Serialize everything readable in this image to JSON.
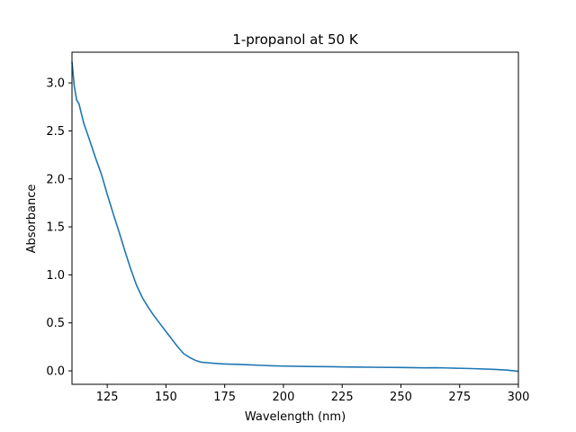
{
  "chart_data": {
    "type": "line",
    "title": "1-propanol at 50 K",
    "xlabel": "Wavelength (nm)",
    "ylabel": "Absorbance",
    "xlim": [
      110,
      300
    ],
    "ylim": [
      -0.14,
      3.32
    ],
    "grid": false,
    "line_color": "#1f77b4",
    "xticks": [
      125,
      150,
      175,
      200,
      225,
      250,
      275,
      300
    ],
    "yticks": [
      0.0,
      0.5,
      1.0,
      1.5,
      2.0,
      2.5,
      3.0
    ],
    "series": [
      {
        "x": [
          110,
          111,
          112,
          113,
          114,
          115,
          117,
          120,
          122.5,
          125,
          127.5,
          130,
          132.5,
          135,
          137.5,
          140,
          142.5,
          145,
          147.5,
          150,
          152.5,
          155,
          157.5,
          160,
          162.5,
          165,
          167.5,
          170,
          172.5,
          175,
          180,
          185,
          190,
          195,
          200,
          210,
          220,
          230,
          240,
          250,
          260,
          265,
          268,
          270,
          280,
          290,
          295,
          300
        ],
        "y": [
          3.22,
          2.96,
          2.82,
          2.78,
          2.68,
          2.58,
          2.44,
          2.22,
          2.05,
          1.84,
          1.64,
          1.45,
          1.25,
          1.06,
          0.89,
          0.76,
          0.66,
          0.57,
          0.49,
          0.41,
          0.33,
          0.25,
          0.18,
          0.14,
          0.11,
          0.09,
          0.085,
          0.08,
          0.075,
          0.072,
          0.068,
          0.063,
          0.058,
          0.053,
          0.05,
          0.046,
          0.043,
          0.04,
          0.037,
          0.035,
          0.032,
          0.033,
          0.031,
          0.03,
          0.024,
          0.015,
          0.008,
          -0.005
        ]
      }
    ]
  }
}
